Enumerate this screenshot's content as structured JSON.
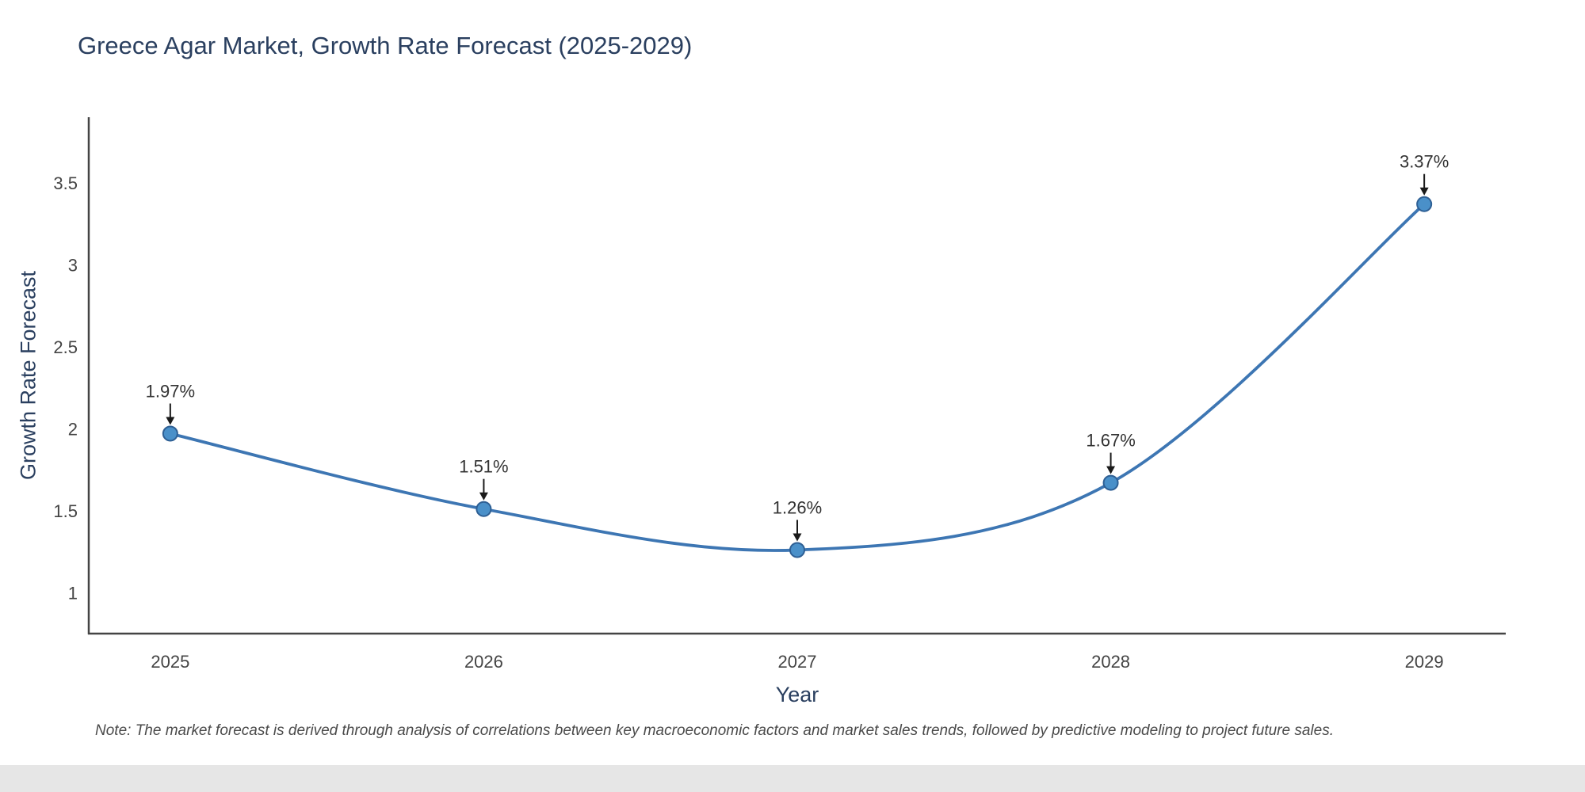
{
  "chart_data": {
    "type": "line",
    "title": "Greece Agar Market, Growth Rate Forecast (2025-2029)",
    "x": [
      2025,
      2026,
      2027,
      2028,
      2029
    ],
    "values": [
      1.97,
      1.51,
      1.26,
      1.67,
      3.37
    ],
    "point_labels": [
      "1.97%",
      "1.51%",
      "1.26%",
      "1.67%",
      "3.37%"
    ],
    "xlabel": "Year",
    "ylabel": "Growth Rate Forecast",
    "xticks": [
      "2025",
      "2026",
      "2027",
      "2028",
      "2029"
    ],
    "yticks": [
      "1",
      "1.5",
      "2",
      "2.5",
      "3",
      "3.5"
    ],
    "xlim": [
      2024.74,
      2029.26
    ],
    "ylim": [
      0.75,
      3.9
    ],
    "line_shape": "spline",
    "grid": false,
    "legend": "none",
    "note": "Note: The market forecast is derived through analysis of correlations between key macroeconomic factors and market sales trends, followed by predictive modeling to project future sales.",
    "colors": {
      "line": "#3d76b3",
      "marker_fill": "#4a90c9",
      "marker_stroke": "#2e5f94",
      "axis": "#444444",
      "tick_label": "#444444",
      "title": "#2a3f5f",
      "annotation_text": "#333333",
      "annotation_arrow": "#1a1a1a"
    }
  }
}
